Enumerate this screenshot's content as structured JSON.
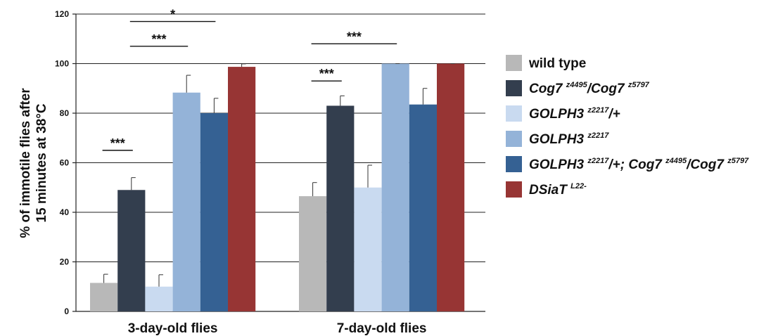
{
  "chart_data": {
    "type": "bar",
    "title": "",
    "xlabel": "",
    "ylabel_lines": [
      "% of immotile flies after",
      "15 minutes at 38°C"
    ],
    "ylim": [
      0,
      120
    ],
    "yticks": [
      0,
      20,
      40,
      60,
      80,
      100,
      120
    ],
    "grid": true,
    "legend_position": "right",
    "categories": [
      "3-day-old flies",
      "7-day-old flies"
    ],
    "series": [
      {
        "name": "wild type",
        "color": "#b8b8b8",
        "values": [
          11.5,
          46.5
        ],
        "errors": [
          3.5,
          5.5
        ],
        "legend_parts": [
          {
            "t": "wild type",
            "style": "normal",
            "sup": false
          }
        ]
      },
      {
        "name": "Cog7 z4495/Cog7 z5797",
        "color": "#333e4e",
        "values": [
          49,
          83
        ],
        "errors": [
          5,
          4
        ],
        "legend_parts": [
          {
            "t": "Cog7 ",
            "style": "italic",
            "sup": false
          },
          {
            "t": "z4495",
            "style": "italic",
            "sup": true
          },
          {
            "t": "/Cog7 ",
            "style": "italic",
            "sup": false
          },
          {
            "t": "z5797",
            "style": "italic",
            "sup": true
          }
        ]
      },
      {
        "name": "GOLPH3 z2217/+",
        "color": "#c9daf0",
        "values": [
          10,
          50
        ],
        "errors": [
          4.8,
          9
        ],
        "legend_parts": [
          {
            "t": "GOLPH3 ",
            "style": "italic",
            "sup": false
          },
          {
            "t": "z2217",
            "style": "italic",
            "sup": true
          },
          {
            "t": "/+",
            "style": "italic",
            "sup": false
          }
        ]
      },
      {
        "name": "GOLPH3 z2217",
        "color": "#94b3d8",
        "values": [
          88.3,
          100
        ],
        "errors": [
          7,
          0
        ],
        "legend_parts": [
          {
            "t": "GOLPH3 ",
            "style": "italic",
            "sup": false
          },
          {
            "t": "z2217",
            "style": "italic",
            "sup": true
          }
        ]
      },
      {
        "name": "GOLPH3 z2217/+; Cog7 z4495/Cog7 z5797",
        "color": "#356193",
        "values": [
          80,
          83.5
        ],
        "errors": [
          6,
          6.5
        ],
        "legend_parts": [
          {
            "t": "GOLPH3 ",
            "style": "italic",
            "sup": false
          },
          {
            "t": "z2217",
            "style": "italic",
            "sup": true
          },
          {
            "t": "/+; Cog7 ",
            "style": "italic",
            "sup": false
          },
          {
            "t": "z4495",
            "style": "italic",
            "sup": true
          },
          {
            "t": "/Cog7 ",
            "style": "italic",
            "sup": false
          },
          {
            "t": "z5797",
            "style": "italic",
            "sup": true
          }
        ]
      },
      {
        "name": "DSiaT L22-",
        "color": "#973534",
        "values": [
          98.7,
          100
        ],
        "errors": [
          1.2,
          0
        ],
        "legend_parts": [
          {
            "t": "DSiaT ",
            "style": "italic",
            "sup": false
          },
          {
            "t": "L22-",
            "style": "italic",
            "sup": true
          }
        ]
      }
    ],
    "annotations": [
      {
        "text": "***",
        "category": 0,
        "from_series": 0,
        "to_series": 1,
        "y": 65
      },
      {
        "text": "***",
        "category": 0,
        "from_series": 1,
        "to_series": 3,
        "y": 107
      },
      {
        "text": "*",
        "category": 0,
        "from_series": 1,
        "to_series": 4,
        "y": 117
      },
      {
        "text": "***",
        "category": 1,
        "from_series": 0,
        "to_series": 1,
        "y": 93
      },
      {
        "text": "***",
        "category": 1,
        "from_series": 0,
        "to_series": 3,
        "y": 108
      }
    ]
  }
}
